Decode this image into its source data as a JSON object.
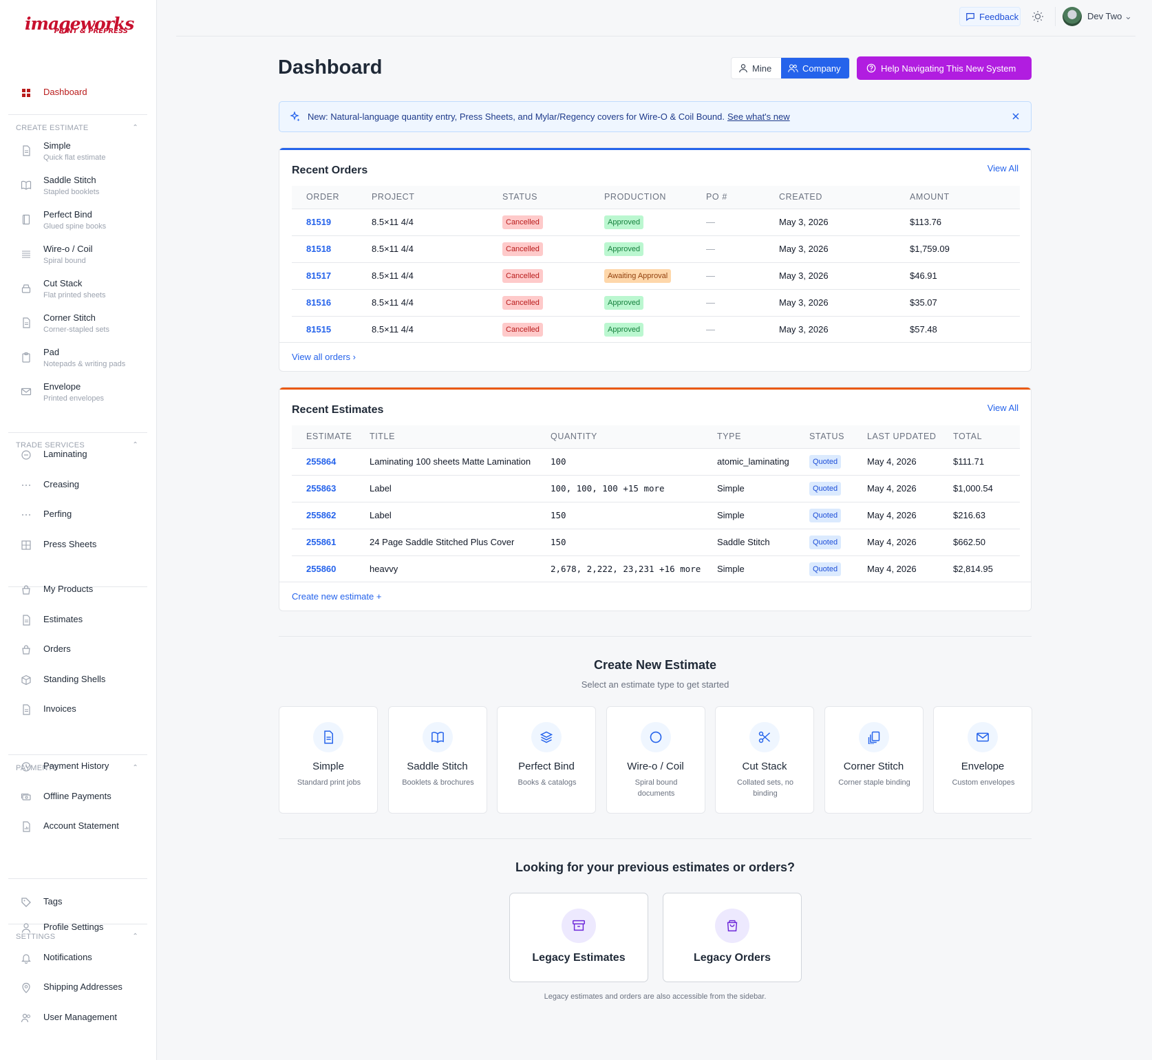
{
  "brand": {
    "logo_main": "imageworks",
    "logo_sub": "PRINT & PREPRESS"
  },
  "sidebar": {
    "dashboard": "Dashboard",
    "create_estimate_header": "CREATE ESTIMATE",
    "estimate_items": [
      {
        "label": "Simple",
        "sub": "Quick flat estimate",
        "icon": "document-icon"
      },
      {
        "label": "Saddle Stitch",
        "sub": "Stapled booklets",
        "icon": "book-open-icon"
      },
      {
        "label": "Perfect Bind",
        "sub": "Glued spine books",
        "icon": "book-icon"
      },
      {
        "label": "Wire-o / Coil",
        "sub": "Spiral bound",
        "icon": "lines-icon"
      },
      {
        "label": "Cut Stack",
        "sub": "Flat printed sheets",
        "icon": "stack-icon"
      },
      {
        "label": "Corner Stitch",
        "sub": "Corner-stapled sets",
        "icon": "document-icon"
      },
      {
        "label": "Pad",
        "sub": "Notepads & writing pads",
        "icon": "clipboard-icon"
      },
      {
        "label": "Envelope",
        "sub": "Printed envelopes",
        "icon": "envelope-icon"
      }
    ],
    "trade_header": "TRADE SERVICES",
    "trade_items": [
      {
        "label": "Laminating",
        "icon": "circle-minus-icon"
      },
      {
        "label": "Creasing",
        "icon": "dots-icon"
      },
      {
        "label": "Perfing",
        "icon": "dots-icon"
      },
      {
        "label": "Press Sheets",
        "icon": "grid-icon"
      }
    ],
    "main_items": [
      {
        "label": "My Products",
        "icon": "bag-icon"
      },
      {
        "label": "Estimates",
        "icon": "document-icon"
      },
      {
        "label": "Orders",
        "icon": "bag-icon"
      },
      {
        "label": "Standing Shells",
        "icon": "cube-icon"
      },
      {
        "label": "Invoices",
        "icon": "document-icon"
      }
    ],
    "payments_header": "PAYMENTS",
    "payment_items": [
      {
        "label": "Payment History",
        "icon": "clock-icon"
      },
      {
        "label": "Offline Payments",
        "icon": "cash-icon"
      },
      {
        "label": "Account Statement",
        "icon": "chart-doc-icon"
      }
    ],
    "tags": "Tags",
    "settings_header": "SETTINGS",
    "settings_items": [
      {
        "label": "Profile Settings",
        "icon": "user-icon"
      },
      {
        "label": "Notifications",
        "icon": "bell-icon"
      },
      {
        "label": "Shipping Addresses",
        "icon": "pin-icon"
      },
      {
        "label": "User Management",
        "icon": "users-icon"
      }
    ]
  },
  "topbar": {
    "feedback": "Feedback",
    "user_name": "Dev Two"
  },
  "header": {
    "title": "Dashboard",
    "mine": "Mine",
    "company": "Company",
    "help": "Help Navigating This New System"
  },
  "banner": {
    "text": "New: Natural-language quantity entry, Press Sheets, and Mylar/Regency covers for Wire-O & Coil Bound.",
    "link": "See what's new"
  },
  "recent_orders": {
    "title": "Recent Orders",
    "view_all": "View All",
    "columns": [
      "ORDER",
      "PROJECT",
      "STATUS",
      "PRODUCTION",
      "PO #",
      "CREATED",
      "AMOUNT"
    ],
    "rows": [
      {
        "order": "81519",
        "project": "8.5×11 4/4",
        "status": "Cancelled",
        "production": "Approved",
        "po": "—",
        "created": "May 3, 2026",
        "amount": "$113.76"
      },
      {
        "order": "81518",
        "project": "8.5×11 4/4",
        "status": "Cancelled",
        "production": "Approved",
        "po": "—",
        "created": "May 3, 2026",
        "amount": "$1,759.09"
      },
      {
        "order": "81517",
        "project": "8.5×11 4/4",
        "status": "Cancelled",
        "production": "Awaiting Approval",
        "po": "—",
        "created": "May 3, 2026",
        "amount": "$46.91"
      },
      {
        "order": "81516",
        "project": "8.5×11 4/4",
        "status": "Cancelled",
        "production": "Approved",
        "po": "—",
        "created": "May 3, 2026",
        "amount": "$35.07"
      },
      {
        "order": "81515",
        "project": "8.5×11 4/4",
        "status": "Cancelled",
        "production": "Approved",
        "po": "—",
        "created": "May 3, 2026",
        "amount": "$57.48"
      }
    ],
    "footer": "View all orders"
  },
  "recent_estimates": {
    "title": "Recent Estimates",
    "view_all": "View All",
    "columns": [
      "ESTIMATE",
      "TITLE",
      "QUANTITY",
      "TYPE",
      "STATUS",
      "LAST UPDATED",
      "TOTAL"
    ],
    "rows": [
      {
        "estimate": "255864",
        "title": "Laminating 100 sheets Matte Lamination",
        "quantity": "100",
        "type": "atomic_laminating",
        "status": "Quoted",
        "updated": "May 4, 2026",
        "total": "$111.71"
      },
      {
        "estimate": "255863",
        "title": "Label",
        "quantity": "100, 100, 100 +15 more",
        "type": "Simple",
        "status": "Quoted",
        "updated": "May 4, 2026",
        "total": "$1,000.54"
      },
      {
        "estimate": "255862",
        "title": "Label",
        "quantity": "150",
        "type": "Simple",
        "status": "Quoted",
        "updated": "May 4, 2026",
        "total": "$216.63"
      },
      {
        "estimate": "255861",
        "title": "24 Page Saddle Stitched Plus Cover",
        "quantity": "150",
        "type": "Saddle Stitch",
        "status": "Quoted",
        "updated": "May 4, 2026",
        "total": "$662.50"
      },
      {
        "estimate": "255860",
        "title": "heavvy",
        "quantity": "2,678, 2,222, 23,231 +16 more",
        "type": "Simple",
        "status": "Quoted",
        "updated": "May 4, 2026",
        "total": "$2,814.95"
      }
    ],
    "footer": "Create new estimate +"
  },
  "create_new": {
    "title": "Create New Estimate",
    "subtitle": "Select an estimate type to get started",
    "tiles": [
      {
        "name": "Simple",
        "desc": "Standard print jobs",
        "icon": "document-icon"
      },
      {
        "name": "Saddle Stitch",
        "desc": "Booklets & brochures",
        "icon": "book-open-icon"
      },
      {
        "name": "Perfect Bind",
        "desc": "Books & catalogs",
        "icon": "layers-icon"
      },
      {
        "name": "Wire-o / Coil",
        "desc": "Spiral bound documents",
        "icon": "circle-icon"
      },
      {
        "name": "Cut Stack",
        "desc": "Collated sets, no binding",
        "icon": "scissors-icon"
      },
      {
        "name": "Corner Stitch",
        "desc": "Corner staple binding",
        "icon": "copy-icon"
      },
      {
        "name": "Envelope",
        "desc": "Custom envelopes",
        "icon": "envelope-icon"
      }
    ]
  },
  "legacy": {
    "title": "Looking for your previous estimates or orders?",
    "estimates": "Legacy Estimates",
    "orders": "Legacy Orders",
    "note": "Legacy estimates and orders are also accessible from the sidebar."
  },
  "colors": {
    "brand_red": "#c8102e",
    "primary_blue": "#2563eb",
    "help_purple": "#b11de0",
    "orders_accent": "#2563eb",
    "estimates_accent": "#ea580c"
  }
}
